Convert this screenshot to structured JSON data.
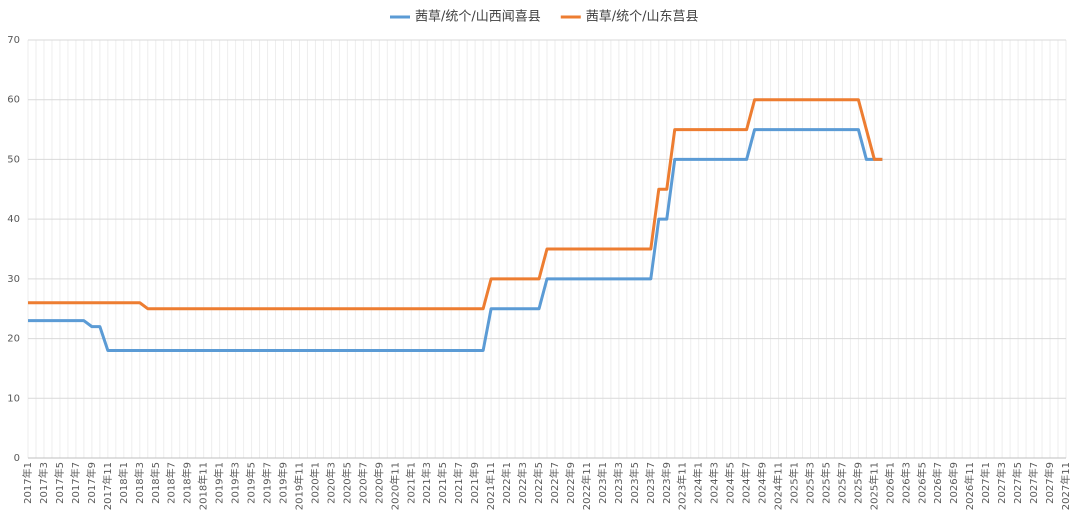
{
  "chart_data": {
    "type": "line",
    "categories": [
      "2017年1",
      null,
      "2017年3",
      null,
      "2017年5",
      null,
      "2017年7",
      null,
      "2017年9",
      null,
      "2017年11",
      null,
      "2018年1",
      null,
      "2018年3",
      null,
      "2018年5",
      null,
      "2018年7",
      null,
      "2018年9",
      null,
      "2018年11",
      null,
      "2019年1",
      null,
      "2019年3",
      null,
      "2019年5",
      null,
      "2019年7",
      null,
      "2019年9",
      null,
      "2019年11",
      null,
      "2020年1",
      null,
      "2020年3",
      null,
      "2020年5",
      null,
      "2020年7",
      null,
      "2020年9",
      null,
      "2020年11",
      null,
      "2021年1",
      null,
      "2021年3",
      null,
      "2021年5",
      null,
      "2021年7",
      null,
      "2021年9",
      null,
      "2021年11",
      null,
      "2022年1",
      null,
      "2022年3",
      null,
      "2022年5",
      null,
      "2022年7",
      null,
      "2022年9",
      null,
      "2022年11",
      null,
      "2023年1",
      null,
      "2023年3",
      null,
      "2023年5",
      null,
      "2023年7",
      null,
      "2023年9",
      null,
      "2023年11",
      null,
      "2024年1",
      null,
      "2024年3",
      null,
      "2024年5",
      null,
      "2024年7",
      null,
      "2024年9",
      null,
      "2024年11",
      null,
      "2025年1",
      null,
      "2025年3",
      null,
      "2025年5",
      null,
      "2025年7",
      null,
      "2025年9",
      null,
      "2025年11",
      null,
      "2026年1",
      null,
      "2026年3",
      null,
      "2026年5",
      null,
      "2026年7",
      null,
      "2026年9",
      null,
      "2026年11",
      null,
      "2027年1",
      null,
      "2027年3",
      null,
      "2027年5",
      null,
      "2027年7",
      null,
      "2027年9",
      null,
      "2027年11"
    ],
    "series": [
      {
        "name": "茜草/统个/山西闻喜县",
        "color": "#5b9bd5",
        "values": [
          23,
          23,
          23,
          23,
          23,
          23,
          23,
          23,
          22,
          22,
          18,
          18,
          18,
          18,
          18,
          18,
          18,
          18,
          18,
          18,
          18,
          18,
          18,
          18,
          18,
          18,
          18,
          18,
          18,
          18,
          18,
          18,
          18,
          18,
          18,
          18,
          18,
          18,
          18,
          18,
          18,
          18,
          18,
          18,
          18,
          18,
          18,
          18,
          18,
          18,
          18,
          18,
          18,
          18,
          18,
          18,
          18,
          18,
          25,
          25,
          25,
          25,
          25,
          25,
          25,
          30,
          30,
          30,
          30,
          30,
          30,
          30,
          30,
          30,
          30,
          30,
          30,
          30,
          30,
          40,
          40,
          50,
          50,
          50,
          50,
          50,
          50,
          50,
          50,
          50,
          50,
          55,
          55,
          55,
          55,
          55,
          55,
          55,
          55,
          55,
          55,
          55,
          55,
          55,
          55,
          50,
          50,
          50,
          null,
          null,
          null,
          null,
          null,
          null,
          null,
          null,
          null,
          null,
          null,
          null,
          null,
          null,
          null,
          null,
          null,
          null,
          null,
          null,
          null,
          null,
          null
        ]
      },
      {
        "name": "茜草/统个/山东莒县",
        "color": "#ed7d31",
        "values": [
          26,
          26,
          26,
          26,
          26,
          26,
          26,
          26,
          26,
          26,
          26,
          26,
          26,
          26,
          26,
          25,
          25,
          25,
          25,
          25,
          25,
          25,
          25,
          25,
          25,
          25,
          25,
          25,
          25,
          25,
          25,
          25,
          25,
          25,
          25,
          25,
          25,
          25,
          25,
          25,
          25,
          25,
          25,
          25,
          25,
          25,
          25,
          25,
          25,
          25,
          25,
          25,
          25,
          25,
          25,
          25,
          25,
          25,
          30,
          30,
          30,
          30,
          30,
          30,
          30,
          35,
          35,
          35,
          35,
          35,
          35,
          35,
          35,
          35,
          35,
          35,
          35,
          35,
          35,
          45,
          45,
          55,
          55,
          55,
          55,
          55,
          55,
          55,
          55,
          55,
          55,
          60,
          60,
          60,
          60,
          60,
          60,
          60,
          60,
          60,
          60,
          60,
          60,
          60,
          60,
          55,
          50,
          50,
          null,
          null,
          null,
          null,
          null,
          null,
          null,
          null,
          null,
          null,
          null,
          null,
          null,
          null,
          null,
          null,
          null,
          null,
          null,
          null,
          null,
          null,
          null
        ]
      }
    ],
    "ylim": [
      0,
      70
    ],
    "yticks": [
      0,
      10,
      20,
      30,
      40,
      50,
      60,
      70
    ],
    "grid": true,
    "legend": "top"
  }
}
